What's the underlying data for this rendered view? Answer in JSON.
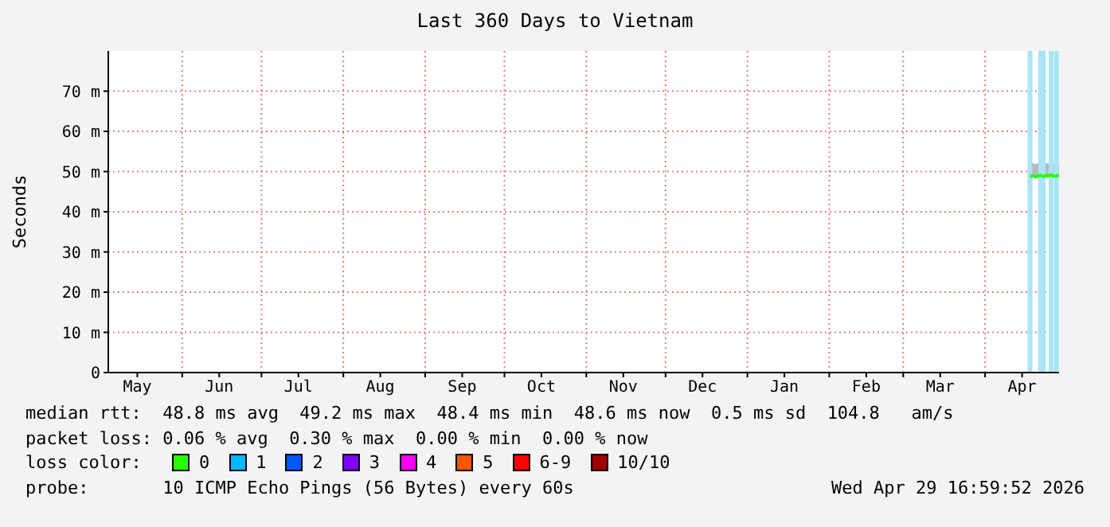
{
  "chart_data": {
    "type": "line",
    "title": "Last 360 Days to Vietnam",
    "ylabel": "Seconds",
    "legend_title": "loss color:",
    "legend": "bottom",
    "grid": true,
    "marker": "none",
    "x": [
      "2026-04-18",
      "2026-04-19",
      "2026-04-20",
      "2026-04-21",
      "2026-04-22",
      "2026-04-23",
      "2026-04-24",
      "2026-04-25",
      "2026-04-26",
      "2026-04-27",
      "2026-04-28",
      "2026-04-29"
    ],
    "xlim": [
      "2025-05-04",
      "2026-04-29"
    ],
    "xticks": [
      {
        "value": "2025-05-15",
        "label": "May"
      },
      {
        "value": "2025-06-01",
        "label": null
      },
      {
        "value": "2025-06-15",
        "label": "Jun"
      },
      {
        "value": "2025-07-01",
        "label": null
      },
      {
        "value": "2025-07-15",
        "label": "Jul"
      },
      {
        "value": "2025-08-01",
        "label": null
      },
      {
        "value": "2025-08-15",
        "label": "Aug"
      },
      {
        "value": "2025-09-01",
        "label": null
      },
      {
        "value": "2025-09-15",
        "label": "Sep"
      },
      {
        "value": "2025-10-01",
        "label": null
      },
      {
        "value": "2025-10-15",
        "label": "Oct"
      },
      {
        "value": "2025-11-01",
        "label": null
      },
      {
        "value": "2025-11-15",
        "label": "Nov"
      },
      {
        "value": "2025-12-01",
        "label": null
      },
      {
        "value": "2025-12-15",
        "label": "Dec"
      },
      {
        "value": "2026-01-01",
        "label": null
      },
      {
        "value": "2026-01-15",
        "label": "Jan"
      },
      {
        "value": "2026-02-01",
        "label": null
      },
      {
        "value": "2026-02-15",
        "label": "Feb"
      },
      {
        "value": "2026-03-01",
        "label": null
      },
      {
        "value": "2026-03-15",
        "label": "Mar"
      },
      {
        "value": "2026-04-01",
        "label": null
      },
      {
        "value": "2026-04-15",
        "label": "Apr"
      }
    ],
    "ylim": [
      0,
      80
    ],
    "yticks": [
      0,
      {
        "value": 10,
        "label": "10 m"
      },
      {
        "value": 20,
        "label": "20 m"
      },
      {
        "value": 30,
        "label": "30 m"
      },
      {
        "value": 40,
        "label": "40 m"
      },
      {
        "value": 50,
        "label": "50 m"
      },
      {
        "value": 60,
        "label": "60 m"
      },
      {
        "value": 70,
        "label": "70 m"
      }
    ],
    "series": [
      {
        "name": "0",
        "color": "#26ff00",
        "values": [
          48.8,
          49,
          48.7,
          48.9,
          49.1,
          48.8,
          49,
          48.9,
          49.2,
          48.8,
          49,
          48.9
        ],
        "lower": [
          48.5,
          48.6,
          48.4,
          48.6,
          48.7,
          48.5,
          48.6,
          48.6,
          48.8,
          48.5,
          48.6,
          48.6
        ],
        "upper": [
          52,
          52.2,
          51.8,
          52.1,
          52.4,
          52,
          52.1,
          52,
          52.3,
          51.9,
          52.2,
          52
        ]
      },
      {
        "name": "1",
        "color": "#00b8ff",
        "values": [
          null,
          null,
          null,
          null,
          null,
          null,
          null,
          null,
          null,
          null,
          null,
          null
        ]
      },
      {
        "name": "2",
        "color": "#0059ff",
        "values": [
          null,
          null,
          null,
          null,
          null,
          null,
          null,
          null,
          null,
          null,
          null,
          null
        ]
      },
      {
        "name": "3",
        "color": "#7e00ff",
        "values": [
          null,
          null,
          null,
          null,
          null,
          null,
          null,
          null,
          null,
          null,
          null,
          null
        ]
      },
      {
        "name": "4",
        "color": "#ff00ff",
        "values": [
          null,
          null,
          null,
          null,
          null,
          null,
          null,
          null,
          null,
          null,
          null,
          null
        ]
      },
      {
        "name": "5",
        "color": "#ff5500",
        "values": [
          null,
          null,
          null,
          null,
          null,
          null,
          null,
          null,
          null,
          null,
          null,
          null
        ]
      },
      {
        "name": "6-9",
        "color": "#ff0000",
        "values": [
          null,
          null,
          null,
          null,
          null,
          null,
          null,
          null,
          null,
          null,
          null,
          null
        ]
      },
      {
        "name": "10/10",
        "color": "#a10000",
        "values": [
          null,
          null,
          null,
          null,
          null,
          null,
          null,
          null,
          null,
          null,
          null,
          null
        ]
      }
    ],
    "ref_lines": [
      {
        "axis": "x",
        "value": "2026-04-18",
        "color": "#a8e4f8"
      },
      {
        "axis": "x",
        "value": "2026-04-22",
        "color": "#a8e4f8"
      },
      {
        "axis": "x",
        "value": "2026-04-23",
        "color": "#a8e4f8"
      },
      {
        "axis": "x",
        "value": "2026-04-26",
        "color": "#a8e4f8"
      },
      {
        "axis": "x",
        "value": "2026-04-28",
        "color": "#a8e4f8"
      }
    ],
    "annotations": [
      "median rtt:  48.8 ms avg  49.2 ms max  48.4 ms min  48.6 ms now  0.5 ms sd  104.8   am/s",
      "packet loss: 0.06 % avg  0.30 % max  0.00 % min  0.00 % now",
      "probe:       10 ICMP Echo Pings (56 Bytes) every 60s",
      "Wed Apr 29 16:59:52 2026"
    ]
  }
}
